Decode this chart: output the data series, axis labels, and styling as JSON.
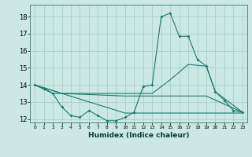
{
  "title": "",
  "xlabel": "Humidex (Indice chaleur)",
  "bg_color": "#cce8e4",
  "grid_color": "#aacfcb",
  "line_color": "#1a7a6e",
  "xlim": [
    -0.5,
    23.5
  ],
  "ylim": [
    11.8,
    18.7
  ],
  "yticks": [
    12,
    13,
    14,
    15,
    16,
    17,
    18
  ],
  "xticks": [
    0,
    1,
    2,
    3,
    4,
    5,
    6,
    7,
    8,
    9,
    10,
    11,
    12,
    13,
    14,
    15,
    16,
    17,
    18,
    19,
    20,
    21,
    22,
    23
  ],
  "line1": {
    "x": [
      0,
      1,
      2,
      3,
      4,
      5,
      6,
      7,
      8,
      9,
      10,
      11,
      12,
      13,
      14,
      15,
      16,
      17,
      18,
      19,
      20,
      21,
      22,
      23
    ],
    "y": [
      14.0,
      13.8,
      13.5,
      12.7,
      12.2,
      12.1,
      12.5,
      12.2,
      11.9,
      11.9,
      12.1,
      12.4,
      13.9,
      14.0,
      18.0,
      18.2,
      16.85,
      16.85,
      15.5,
      15.1,
      13.6,
      13.1,
      12.5,
      12.4
    ]
  },
  "line2": {
    "x": [
      0,
      2,
      3,
      10,
      13,
      15,
      17,
      19,
      20,
      23
    ],
    "y": [
      14.0,
      13.5,
      13.5,
      13.5,
      13.5,
      14.3,
      15.2,
      15.1,
      13.6,
      12.4
    ]
  },
  "line3": {
    "x": [
      0,
      3,
      10,
      19,
      23
    ],
    "y": [
      14.0,
      13.5,
      13.35,
      13.35,
      12.4
    ]
  },
  "line4": {
    "x": [
      0,
      3,
      10,
      23
    ],
    "y": [
      14.0,
      13.5,
      12.35,
      12.35
    ]
  }
}
